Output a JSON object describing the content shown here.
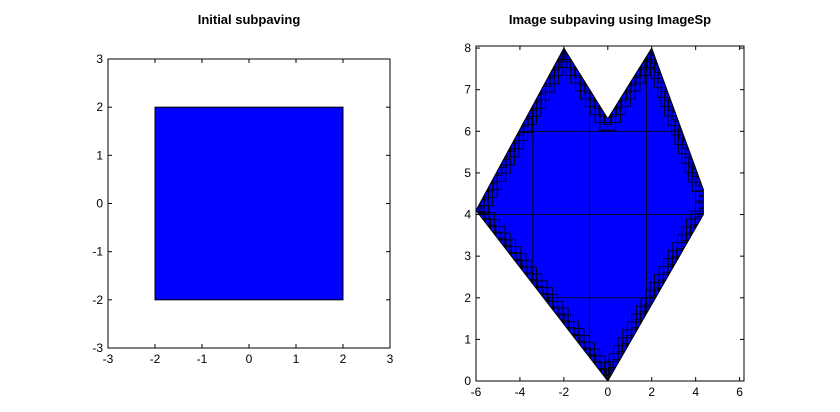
{
  "chart_data": [
    {
      "type": "area",
      "title": "Initial subpaving",
      "xlabel": "",
      "ylabel": "",
      "xlim": [
        -3,
        3
      ],
      "ylim": [
        -3,
        3
      ],
      "xticks": [
        -3,
        -2,
        -1,
        0,
        1,
        2,
        3
      ],
      "yticks": [
        -3,
        -2,
        -1,
        0,
        1,
        2,
        3
      ],
      "grid": false,
      "fill_color": "#0000ff",
      "edge_color": "#000000",
      "boxes": [
        {
          "x": [
            -2,
            2
          ],
          "y": [
            -2,
            2
          ]
        }
      ]
    },
    {
      "type": "area",
      "title": "Image subpaving using ImageSp",
      "xlabel": "",
      "ylabel": "",
      "xlim": [
        -6,
        6.2
      ],
      "ylim": [
        0,
        8.05
      ],
      "xticks": [
        -6,
        -4,
        -2,
        0,
        2,
        4,
        6
      ],
      "yticks": [
        0,
        1,
        2,
        3,
        4,
        5,
        6,
        7,
        8
      ],
      "grid": false,
      "fill_color": "#0000ff",
      "edge_color": "#000000",
      "outline": {
        "x": [
          -6,
          -2,
          0,
          2,
          4.35,
          4.35,
          0,
          -6
        ],
        "y": [
          4.1,
          8,
          6.3,
          8,
          4.6,
          4,
          0,
          4.1
        ]
      }
    }
  ]
}
